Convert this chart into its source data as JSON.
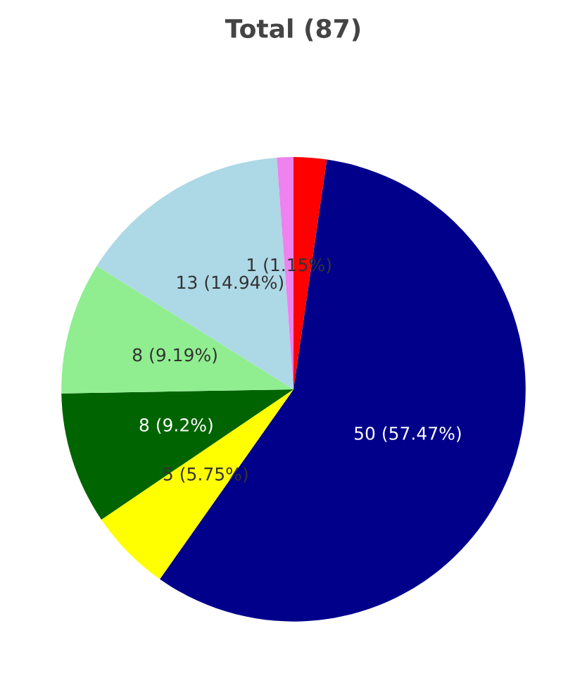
{
  "chart_data": {
    "type": "pie",
    "title": "Total (87)",
    "categories": [
      null,
      null,
      null,
      null,
      null,
      null,
      null
    ],
    "values": [
      2,
      50,
      5,
      8,
      8,
      13,
      1
    ],
    "colors": [
      "#ff0000",
      "#00008b",
      "#ffff00",
      "#006400",
      "#90ee90",
      "#add8e6",
      "#ee82ee"
    ],
    "value_labels": [
      null,
      "50 (57.47%)",
      "5 (5.75%)",
      "8 (9.2%)",
      "8 (9.19%)",
      "13 (14.94%)",
      "1 (1.15%)"
    ]
  }
}
